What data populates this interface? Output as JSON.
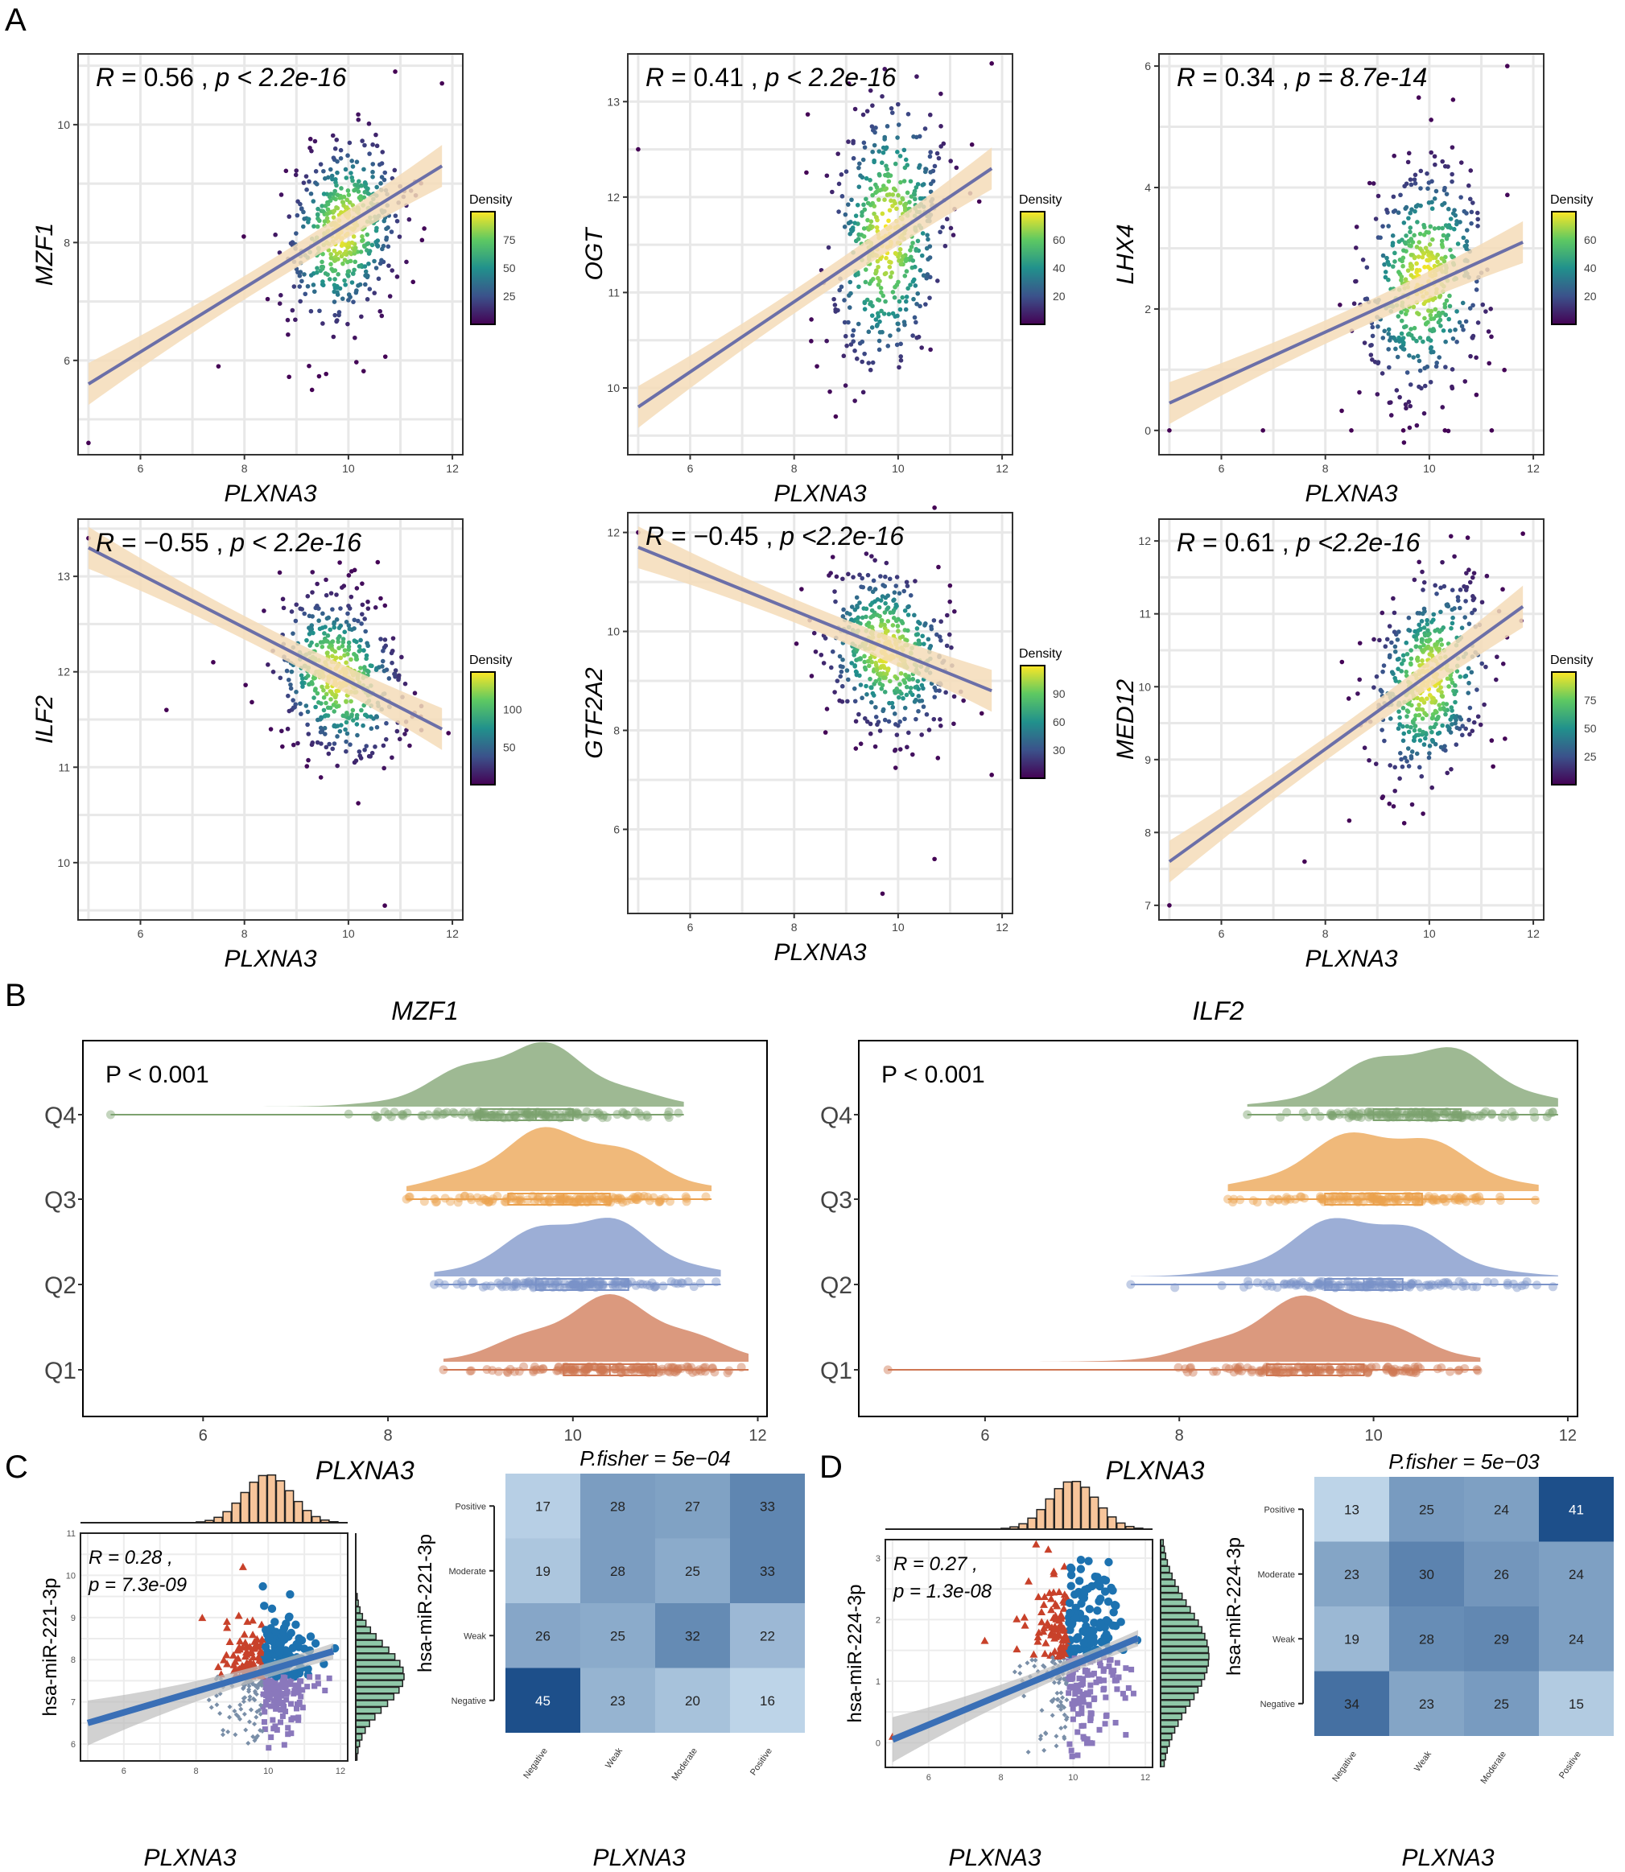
{
  "panel_labels": {
    "A": "A",
    "B": "B",
    "C": "C",
    "D": "D"
  },
  "colors": {
    "regression_line": "#6b6fa8",
    "confidence_band": "#f5dcb8",
    "raincloud_Q4": "#7da26f",
    "raincloud_Q3": "#eba14e",
    "raincloud_Q2": "#7b93c8",
    "raincloud_Q1": "#cf7753",
    "scatter_up": "#c8412a",
    "scatter_upright": "#1d72b0",
    "scatter_low": "#7a8fa8",
    "scatter_lowright": "#8a78bc",
    "heat_low": "#bdd4e8",
    "heat_high": "#1d4f8a",
    "hist_top": "#f7c59b",
    "hist_right": "#8fc8a8"
  },
  "chart_data": [
    {
      "panel": "A",
      "type": "scatter",
      "title": "",
      "xlabel": "PLXNA3",
      "ylabel": "MZF1",
      "annotation_R": "0.56",
      "annotation_p": "p < 2.2e-16",
      "xlim": [
        4.8,
        12.2
      ],
      "ylim": [
        4.4,
        11.2
      ],
      "xticks": [
        "6",
        "8",
        "10",
        "12"
      ],
      "yticks": [
        "6",
        "8",
        "10"
      ],
      "fit": {
        "x0": 5,
        "y0": 5.6,
        "x1": 11.8,
        "y1": 9.3
      },
      "center": [
        9.9,
        8.2
      ],
      "spread": [
        0.55,
        0.75
      ],
      "outliers": [
        [
          5.0,
          4.6
        ],
        [
          7.5,
          5.9
        ],
        [
          9.3,
          5.5
        ],
        [
          10.9,
          10.9
        ],
        [
          11.8,
          10.7
        ]
      ],
      "legend": {
        "title": "Density",
        "ticks": [
          "25",
          "50",
          "75"
        ]
      }
    },
    {
      "panel": "A",
      "type": "scatter",
      "title": "",
      "xlabel": "PLXNA3",
      "ylabel": "OGT",
      "annotation_R": "0.41",
      "annotation_p": "p < 2.2e-16",
      "xlim": [
        4.8,
        12.2
      ],
      "ylim": [
        9.3,
        13.5
      ],
      "xticks": [
        "6",
        "8",
        "10",
        "12"
      ],
      "yticks": [
        "10",
        "11",
        "12",
        "13"
      ],
      "fit": {
        "x0": 5,
        "y0": 9.8,
        "x1": 11.8,
        "y1": 12.3
      },
      "center": [
        9.8,
        11.6
      ],
      "spread": [
        0.55,
        0.7
      ],
      "outliers": [
        [
          5.0,
          12.5
        ],
        [
          8.8,
          9.7
        ],
        [
          11.8,
          13.4
        ]
      ],
      "legend": {
        "title": "Density",
        "ticks": [
          "20",
          "40",
          "60"
        ]
      }
    },
    {
      "panel": "A",
      "type": "scatter",
      "title": "",
      "xlabel": "PLXNA3",
      "ylabel": "LHX4",
      "annotation_R": "0.34",
      "annotation_p": "p = 8.7e-14",
      "xlim": [
        4.8,
        12.2
      ],
      "ylim": [
        -0.4,
        6.2
      ],
      "xticks": [
        "6",
        "8",
        "10",
        "12"
      ],
      "yticks": [
        "0",
        "2",
        "4",
        "6"
      ],
      "fit": {
        "x0": 5,
        "y0": 0.45,
        "x1": 11.8,
        "y1": 3.1
      },
      "center": [
        9.9,
        2.5
      ],
      "spread": [
        0.6,
        0.9
      ],
      "outliers": [
        [
          5.0,
          0.0
        ],
        [
          6.8,
          0.0
        ],
        [
          8.5,
          0.0
        ],
        [
          9.5,
          0.0
        ],
        [
          10.3,
          0.0
        ],
        [
          11.2,
          0.0
        ],
        [
          11.5,
          6.0
        ]
      ],
      "legend": {
        "title": "Density",
        "ticks": [
          "20",
          "40",
          "60"
        ]
      }
    },
    {
      "panel": "A",
      "type": "scatter",
      "title": "",
      "xlabel": "PLXNA3",
      "ylabel": "ILF2",
      "annotation_R": "−0.55",
      "annotation_p": "p < 2.2e-16",
      "xlim": [
        4.8,
        12.2
      ],
      "ylim": [
        9.4,
        13.6
      ],
      "xticks": [
        "6",
        "8",
        "10",
        "12"
      ],
      "yticks": [
        "10",
        "11",
        "12",
        "13"
      ],
      "fit": {
        "x0": 5,
        "y0": 13.3,
        "x1": 11.8,
        "y1": 11.4
      },
      "center": [
        9.8,
        11.95
      ],
      "spread": [
        0.6,
        0.4
      ],
      "outliers": [
        [
          5.0,
          13.4
        ],
        [
          6.5,
          11.6
        ],
        [
          7.4,
          12.1
        ],
        [
          10.7,
          9.55
        ]
      ],
      "legend": {
        "title": "Density",
        "ticks": [
          "50",
          "100"
        ]
      }
    },
    {
      "panel": "A",
      "type": "scatter",
      "title": "",
      "xlabel": "PLXNA3",
      "ylabel": "GTF2A2",
      "annotation_R": "−0.45",
      "annotation_p": "p <2.2e-16",
      "xlim": [
        4.8,
        12.2
      ],
      "ylim": [
        4.3,
        12.4
      ],
      "xticks": [
        "6",
        "8",
        "10",
        "12"
      ],
      "yticks": [
        "6",
        "8",
        "10",
        "12"
      ],
      "fit": {
        "x0": 5,
        "y0": 11.7,
        "x1": 11.8,
        "y1": 8.8
      },
      "center": [
        9.8,
        9.6
      ],
      "spread": [
        0.6,
        0.8
      ],
      "outliers": [
        [
          5.0,
          12.0
        ],
        [
          9.7,
          4.7
        ],
        [
          10.7,
          5.4
        ],
        [
          11.8,
          7.1
        ],
        [
          10.7,
          12.5
        ]
      ],
      "legend": {
        "title": "Density",
        "ticks": [
          "30",
          "60",
          "90"
        ]
      }
    },
    {
      "panel": "A",
      "type": "scatter",
      "title": "",
      "xlabel": "PLXNA3",
      "ylabel": "MED12",
      "annotation_R": "0.61",
      "annotation_p": "p <2.2e-16",
      "xlim": [
        4.8,
        12.2
      ],
      "ylim": [
        6.8,
        12.3
      ],
      "xticks": [
        "6",
        "8",
        "10",
        "12"
      ],
      "yticks": [
        "7",
        "8",
        "9",
        "10",
        "11",
        "12"
      ],
      "fit": {
        "x0": 5,
        "y0": 7.6,
        "x1": 11.8,
        "y1": 11.1
      },
      "center": [
        10.0,
        10.1
      ],
      "spread": [
        0.55,
        0.65
      ],
      "outliers": [
        [
          5.0,
          7.0
        ],
        [
          7.6,
          7.6
        ],
        [
          11.8,
          12.1
        ]
      ],
      "legend": {
        "title": "Density",
        "ticks": [
          "25",
          "50",
          "75"
        ]
      }
    },
    {
      "panel": "B",
      "type": "raincloud",
      "title": "MZF1",
      "xlabel": "PLXNA3",
      "annotation": "P < 0.001",
      "xlim": [
        4.7,
        12.1
      ],
      "xticks": [
        "6",
        "8",
        "10",
        "12"
      ],
      "groups": [
        {
          "name": "Q4",
          "mean": 9.5,
          "sd": 0.75,
          "min": 5.0,
          "max": 11.2,
          "q1": 9.0,
          "median": 9.6,
          "q3": 10.0
        },
        {
          "name": "Q3",
          "mean": 9.9,
          "sd": 0.75,
          "min": 8.2,
          "max": 11.5,
          "q1": 9.3,
          "median": 9.9,
          "q3": 10.4
        },
        {
          "name": "Q2",
          "mean": 10.1,
          "sd": 0.7,
          "min": 8.5,
          "max": 11.6,
          "q1": 9.6,
          "median": 10.1,
          "q3": 10.6
        },
        {
          "name": "Q1",
          "mean": 10.4,
          "sd": 0.75,
          "min": 8.6,
          "max": 11.9,
          "q1": 9.9,
          "median": 10.4,
          "q3": 10.9
        }
      ]
    },
    {
      "panel": "B",
      "type": "raincloud",
      "title": "ILF2",
      "xlabel": "PLXNA3",
      "annotation": "P < 0.001",
      "xlim": [
        4.7,
        12.1
      ],
      "xticks": [
        "6",
        "8",
        "10",
        "12"
      ],
      "groups": [
        {
          "name": "Q4",
          "mean": 10.5,
          "sd": 0.7,
          "min": 8.7,
          "max": 11.9,
          "q1": 10.0,
          "median": 10.5,
          "q3": 10.9
        },
        {
          "name": "Q3",
          "mean": 10.1,
          "sd": 0.75,
          "min": 8.5,
          "max": 11.7,
          "q1": 9.5,
          "median": 10.0,
          "q3": 10.5
        },
        {
          "name": "Q2",
          "mean": 9.9,
          "sd": 0.7,
          "min": 7.5,
          "max": 11.9,
          "q1": 9.5,
          "median": 9.9,
          "q3": 10.3
        },
        {
          "name": "Q1",
          "mean": 9.4,
          "sd": 0.75,
          "min": 5.0,
          "max": 11.1,
          "q1": 8.9,
          "median": 9.4,
          "q3": 9.9
        }
      ]
    },
    {
      "panel": "C",
      "type": "scatter",
      "title": "",
      "xlabel": "PLXNA3",
      "ylabel": "hsa-miR-221-3p",
      "annotation_R": "R = 0.28 ,",
      "annotation_p": "p = 7.3e-09",
      "xlim": [
        4.8,
        12.2
      ],
      "ylim": [
        5.6,
        11.0
      ],
      "xticks": [
        "6",
        "8",
        "10",
        "12"
      ],
      "yticks": [
        "6",
        "7",
        "8",
        "9",
        "10",
        "11"
      ],
      "fit": {
        "x0": 5,
        "y0": 6.5,
        "x1": 11.8,
        "y1": 8.2
      },
      "center": [
        10.0,
        7.6
      ],
      "spread": [
        0.6,
        0.65
      ],
      "outliers": [
        [
          9.3,
          10.2
        ]
      ]
    },
    {
      "panel": "C",
      "type": "heatmap",
      "title": "P.fisher =  5e−04",
      "xlabel": "PLXNA3",
      "ylabel": "hsa-miR-221-3p",
      "rows": [
        "Positive",
        "Moderate",
        "Weak",
        "Negative"
      ],
      "cols": [
        "Negative",
        "Weak",
        "Moderate",
        "Positive"
      ],
      "values": [
        [
          17,
          28,
          27,
          33
        ],
        [
          19,
          28,
          25,
          33
        ],
        [
          26,
          25,
          32,
          22
        ],
        [
          45,
          23,
          20,
          16
        ]
      ]
    },
    {
      "panel": "D",
      "type": "scatter",
      "title": "",
      "xlabel": "PLXNA3",
      "ylabel": "hsa-miR-224-3p",
      "annotation_R": "R = 0.27 ,",
      "annotation_p": "p = 1.3e-08",
      "xlim": [
        4.8,
        12.2
      ],
      "ylim": [
        -0.4,
        3.3
      ],
      "xticks": [
        "6",
        "8",
        "10",
        "12"
      ],
      "yticks": [
        "0",
        "1",
        "2",
        "3"
      ],
      "fit": {
        "x0": 5,
        "y0": 0.05,
        "x1": 11.8,
        "y1": 1.7
      },
      "center": [
        10.0,
        1.4
      ],
      "spread": [
        0.6,
        0.7
      ],
      "outliers": [
        [
          5.0,
          0.1
        ]
      ]
    },
    {
      "panel": "D",
      "type": "heatmap",
      "title": "P.fisher =  5e−03",
      "xlabel": "PLXNA3",
      "ylabel": "hsa-miR-224-3p",
      "rows": [
        "Positive",
        "Moderate",
        "Weak",
        "Negative"
      ],
      "cols": [
        "Negative",
        "Weak",
        "Moderate",
        "Positive"
      ],
      "values": [
        [
          13,
          25,
          24,
          41
        ],
        [
          23,
          30,
          26,
          24
        ],
        [
          19,
          28,
          29,
          24
        ],
        [
          34,
          23,
          25,
          15
        ]
      ]
    }
  ]
}
